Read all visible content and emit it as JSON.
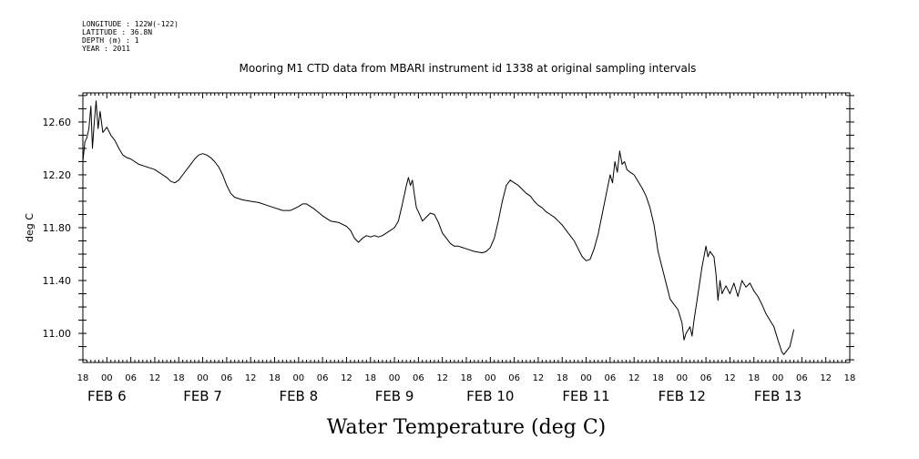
{
  "header": {
    "meta_lines": [
      "LONGITUDE : 122W(-122)",
      "LATITUDE : 36.8N",
      "DEPTH (m) : 1",
      "YEAR : 2011"
    ],
    "title": "Mooring M1 CTD data from MBARI instrument id 1338 at original sampling intervals"
  },
  "chart_data": {
    "type": "line",
    "title": "Mooring M1 CTD data from MBARI instrument id 1338 at original sampling intervals",
    "xlabel": "Water Temperature (deg C)",
    "ylabel": "deg C",
    "x_unit": "hours since 2011-02-05 18:00",
    "xlim": [
      0,
      192
    ],
    "ylim": [
      10.78,
      12.82
    ],
    "y_ticks": [
      11.0,
      11.4,
      11.8,
      12.2,
      12.6
    ],
    "y_tick_labels": [
      "11.00",
      "11.40",
      "11.80",
      "12.20",
      "12.60"
    ],
    "x_hour_labels": [
      "18",
      "00",
      "06",
      "12",
      "18",
      "00",
      "06",
      "12",
      "18",
      "00",
      "06",
      "12",
      "18",
      "00",
      "06",
      "12",
      "18",
      "00",
      "06",
      "12",
      "18",
      "00",
      "06",
      "12",
      "18",
      "00",
      "06",
      "12",
      "18",
      "00",
      "06",
      "12",
      "18"
    ],
    "x_day_labels": [
      {
        "label": "FEB 6",
        "x": 6
      },
      {
        "label": "FEB 7",
        "x": 30
      },
      {
        "label": "FEB 8",
        "x": 54
      },
      {
        "label": "FEB 9",
        "x": 78
      },
      {
        "label": "FEB 10",
        "x": 102
      },
      {
        "label": "FEB 11",
        "x": 126
      },
      {
        "label": "FEB 12",
        "x": 150
      },
      {
        "label": "FEB 13",
        "x": 174
      }
    ],
    "grid": false,
    "series": [
      {
        "color": "#000000",
        "points": [
          [
            0.0,
            12.3
          ],
          [
            0.5,
            12.45
          ],
          [
            1.0,
            12.48
          ],
          [
            1.5,
            12.55
          ],
          [
            2.0,
            12.72
          ],
          [
            2.4,
            12.4
          ],
          [
            2.8,
            12.58
          ],
          [
            3.3,
            12.76
          ],
          [
            3.8,
            12.55
          ],
          [
            4.3,
            12.68
          ],
          [
            5.0,
            12.52
          ],
          [
            6.0,
            12.56
          ],
          [
            7.0,
            12.5
          ],
          [
            8.0,
            12.46
          ],
          [
            9.0,
            12.4
          ],
          [
            10.0,
            12.35
          ],
          [
            11.0,
            12.33
          ],
          [
            12.0,
            12.32
          ],
          [
            13.0,
            12.3
          ],
          [
            14.0,
            12.28
          ],
          [
            15.0,
            12.27
          ],
          [
            16.0,
            12.26
          ],
          [
            17.0,
            12.25
          ],
          [
            18.0,
            12.24
          ],
          [
            19.0,
            12.22
          ],
          [
            20.0,
            12.2
          ],
          [
            21.0,
            12.18
          ],
          [
            22.0,
            12.15
          ],
          [
            23.0,
            12.14
          ],
          [
            24.0,
            12.16
          ],
          [
            25.0,
            12.2
          ],
          [
            26.0,
            12.24
          ],
          [
            27.0,
            12.28
          ],
          [
            28.0,
            12.32
          ],
          [
            29.0,
            12.35
          ],
          [
            30.0,
            12.36
          ],
          [
            31.0,
            12.35
          ],
          [
            32.0,
            12.33
          ],
          [
            33.0,
            12.3
          ],
          [
            34.0,
            12.26
          ],
          [
            35.0,
            12.2
          ],
          [
            36.0,
            12.12
          ],
          [
            37.0,
            12.06
          ],
          [
            38.0,
            12.03
          ],
          [
            40.0,
            12.01
          ],
          [
            42.0,
            12.0
          ],
          [
            44.0,
            11.99
          ],
          [
            46.0,
            11.97
          ],
          [
            48.0,
            11.95
          ],
          [
            50.0,
            11.93
          ],
          [
            52.0,
            11.93
          ],
          [
            54.0,
            11.96
          ],
          [
            55.0,
            11.98
          ],
          [
            56.0,
            11.98
          ],
          [
            57.0,
            11.96
          ],
          [
            58.0,
            11.94
          ],
          [
            60.0,
            11.89
          ],
          [
            62.0,
            11.85
          ],
          [
            64.0,
            11.84
          ],
          [
            66.0,
            11.81
          ],
          [
            67.0,
            11.78
          ],
          [
            68.0,
            11.72
          ],
          [
            69.0,
            11.69
          ],
          [
            70.0,
            11.72
          ],
          [
            71.0,
            11.74
          ],
          [
            72.0,
            11.73
          ],
          [
            73.0,
            11.74
          ],
          [
            74.0,
            11.73
          ],
          [
            75.0,
            11.74
          ],
          [
            76.0,
            11.76
          ],
          [
            77.0,
            11.78
          ],
          [
            78.0,
            11.8
          ],
          [
            79.0,
            11.85
          ],
          [
            80.0,
            11.98
          ],
          [
            81.0,
            12.12
          ],
          [
            81.5,
            12.18
          ],
          [
            82.0,
            12.12
          ],
          [
            82.5,
            12.16
          ],
          [
            83.0,
            12.05
          ],
          [
            83.5,
            11.95
          ],
          [
            84.0,
            11.92
          ],
          [
            85.0,
            11.85
          ],
          [
            86.0,
            11.88
          ],
          [
            87.0,
            11.91
          ],
          [
            88.0,
            11.9
          ],
          [
            89.0,
            11.84
          ],
          [
            90.0,
            11.76
          ],
          [
            91.0,
            11.72
          ],
          [
            92.0,
            11.68
          ],
          [
            93.0,
            11.66
          ],
          [
            94.0,
            11.66
          ],
          [
            96.0,
            11.64
          ],
          [
            98.0,
            11.62
          ],
          [
            100.0,
            11.61
          ],
          [
            101.0,
            11.62
          ],
          [
            102.0,
            11.65
          ],
          [
            103.0,
            11.72
          ],
          [
            104.0,
            11.85
          ],
          [
            105.0,
            12.0
          ],
          [
            106.0,
            12.12
          ],
          [
            107.0,
            12.16
          ],
          [
            108.0,
            12.14
          ],
          [
            109.0,
            12.12
          ],
          [
            110.0,
            12.09
          ],
          [
            111.0,
            12.06
          ],
          [
            112.0,
            12.04
          ],
          [
            113.0,
            12.0
          ],
          [
            114.0,
            11.97
          ],
          [
            115.0,
            11.95
          ],
          [
            116.0,
            11.92
          ],
          [
            117.0,
            11.9
          ],
          [
            118.0,
            11.88
          ],
          [
            119.0,
            11.85
          ],
          [
            120.0,
            11.82
          ],
          [
            121.0,
            11.78
          ],
          [
            122.0,
            11.74
          ],
          [
            123.0,
            11.7
          ],
          [
            124.0,
            11.64
          ],
          [
            125.0,
            11.58
          ],
          [
            126.0,
            11.55
          ],
          [
            127.0,
            11.56
          ],
          [
            128.0,
            11.64
          ],
          [
            129.0,
            11.75
          ],
          [
            130.0,
            11.9
          ],
          [
            131.0,
            12.05
          ],
          [
            132.0,
            12.2
          ],
          [
            132.6,
            12.14
          ],
          [
            133.2,
            12.3
          ],
          [
            133.8,
            12.22
          ],
          [
            134.4,
            12.38
          ],
          [
            135.0,
            12.28
          ],
          [
            135.6,
            12.3
          ],
          [
            136.2,
            12.24
          ],
          [
            137.0,
            12.22
          ],
          [
            138.0,
            12.2
          ],
          [
            139.0,
            12.15
          ],
          [
            140.0,
            12.1
          ],
          [
            141.0,
            12.04
          ],
          [
            142.0,
            11.95
          ],
          [
            143.0,
            11.82
          ],
          [
            144.0,
            11.62
          ],
          [
            145.0,
            11.5
          ],
          [
            146.0,
            11.38
          ],
          [
            147.0,
            11.26
          ],
          [
            148.0,
            11.22
          ],
          [
            149.0,
            11.18
          ],
          [
            150.0,
            11.08
          ],
          [
            150.5,
            10.95
          ],
          [
            151.0,
            11.0
          ],
          [
            152.0,
            11.05
          ],
          [
            152.5,
            10.98
          ],
          [
            153.0,
            11.1
          ],
          [
            154.0,
            11.3
          ],
          [
            155.0,
            11.5
          ],
          [
            156.0,
            11.66
          ],
          [
            156.5,
            11.58
          ],
          [
            157.0,
            11.62
          ],
          [
            158.0,
            11.58
          ],
          [
            158.5,
            11.45
          ],
          [
            159.0,
            11.25
          ],
          [
            159.5,
            11.4
          ],
          [
            160.0,
            11.3
          ],
          [
            161.0,
            11.36
          ],
          [
            162.0,
            11.3
          ],
          [
            163.0,
            11.38
          ],
          [
            164.0,
            11.28
          ],
          [
            165.0,
            11.4
          ],
          [
            166.0,
            11.35
          ],
          [
            167.0,
            11.38
          ],
          [
            168.0,
            11.32
          ],
          [
            169.0,
            11.28
          ],
          [
            170.0,
            11.22
          ],
          [
            171.0,
            11.15
          ],
          [
            172.0,
            11.1
          ],
          [
            173.0,
            11.05
          ],
          [
            174.0,
            10.95
          ],
          [
            175.0,
            10.86
          ],
          [
            175.5,
            10.84
          ],
          [
            176.0,
            10.86
          ],
          [
            177.0,
            10.9
          ],
          [
            178.0,
            11.03
          ]
        ]
      }
    ]
  }
}
